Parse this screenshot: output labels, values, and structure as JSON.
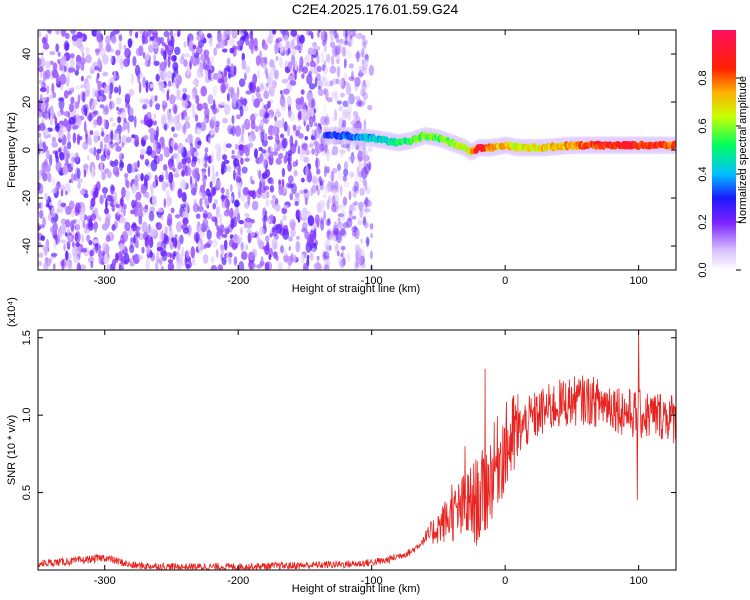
{
  "title": "C2E4.2025.176.01.59.G24",
  "colors": {
    "spectrogram_high": "#ff0000",
    "spectrogram_low": "#6a00e0",
    "snr_line": "#e8231f"
  },
  "chart_data": [
    {
      "type": "heatmap",
      "name": "spectrogram",
      "xlabel": "Height of straight line (km)",
      "ylabel": "Frequency (Hz)",
      "xlim": [
        -350,
        128
      ],
      "ylim": [
        -50,
        50
      ],
      "xticks": [
        -300,
        -200,
        -100,
        0,
        100
      ],
      "yticks": [
        -40,
        -20,
        0,
        20,
        40
      ],
      "colorbar": {
        "label": "Normalized spectral amplitude",
        "range": [
          0.0,
          1.0
        ],
        "ticks": [
          0.0,
          0.2,
          0.4,
          0.6,
          0.8
        ]
      },
      "noise_region": {
        "x": [
          -350,
          -100
        ],
        "y": [
          -50,
          50
        ],
        "amplitude": [
          0.05,
          0.25
        ]
      },
      "signal_trace": {
        "x": [
          -135,
          -120,
          -100,
          -90,
          -80,
          -70,
          -60,
          -50,
          -40,
          -30,
          -25,
          -20,
          -10,
          0,
          10,
          30,
          50,
          70,
          90,
          110,
          128
        ],
        "frequency": [
          6,
          6,
          5,
          4,
          3,
          4,
          6,
          5,
          3,
          1,
          -1,
          1,
          1,
          2,
          1,
          1,
          2,
          2,
          2,
          2,
          2
        ],
        "amplitude": [
          0.3,
          0.35,
          0.4,
          0.45,
          0.5,
          0.55,
          0.6,
          0.55,
          0.6,
          0.65,
          0.7,
          0.9,
          0.75,
          0.7,
          0.65,
          0.7,
          0.75,
          0.85,
          0.9,
          0.85,
          0.8
        ]
      }
    },
    {
      "type": "line",
      "name": "snr",
      "xlabel": "Height of straight line (km)",
      "ylabel": "SNR (10 * v/v)",
      "y_multiplier": "(x10⁴)",
      "xlim": [
        -350,
        128
      ],
      "ylim": [
        0,
        1.55
      ],
      "xticks": [
        -300,
        -200,
        -100,
        0,
        100
      ],
      "yticks": [
        0.5,
        1.0,
        1.5
      ],
      "ytick_labels": [
        "0.5",
        "1.0",
        "1.5"
      ],
      "trend": {
        "x": [
          -350,
          -320,
          -300,
          -280,
          -250,
          -200,
          -150,
          -110,
          -90,
          -70,
          -60,
          -50,
          -40,
          -30,
          -20,
          -15,
          -10,
          -5,
          0,
          10,
          20,
          30,
          40,
          50,
          60,
          70,
          80,
          90,
          100,
          110,
          120,
          128
        ],
        "y": [
          0.04,
          0.06,
          0.08,
          0.03,
          0.02,
          0.02,
          0.03,
          0.04,
          0.06,
          0.12,
          0.2,
          0.28,
          0.35,
          0.4,
          0.45,
          0.5,
          0.62,
          0.72,
          0.78,
          0.9,
          0.98,
          1.03,
          1.07,
          1.09,
          1.1,
          1.08,
          1.07,
          1.02,
          1.0,
          1.0,
          1.0,
          0.97
        ]
      },
      "spikes": [
        {
          "x": -15,
          "y": 1.3
        },
        {
          "x": -30,
          "y": 0.8
        },
        {
          "x": -40,
          "y": 0.55
        },
        {
          "x": 100,
          "y": 1.55
        },
        {
          "x": 99,
          "y": 0.45
        }
      ]
    }
  ]
}
